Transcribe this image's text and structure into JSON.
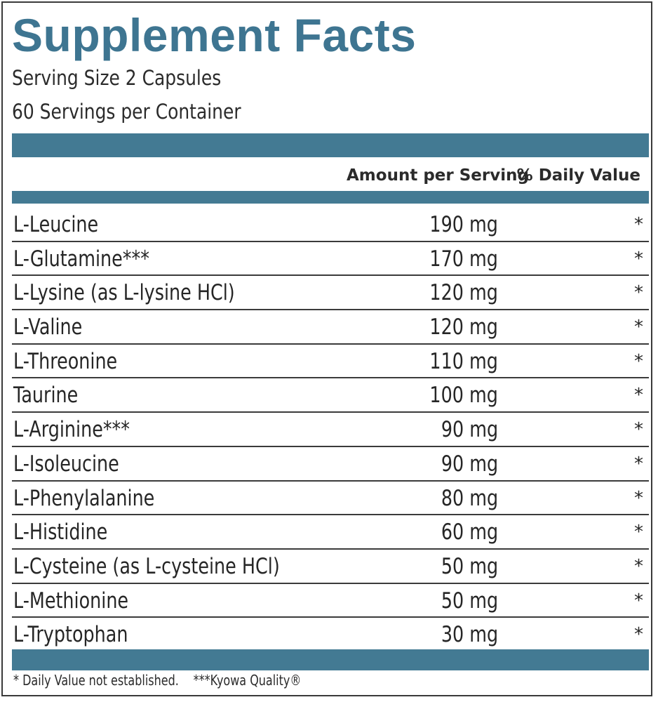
{
  "label": {
    "title": "Supplement Facts",
    "serving_size": "Serving Size 2 Capsules",
    "servings_per_container": "60 Servings per Container",
    "headers": {
      "amount": "Amount per Serving",
      "daily_value": "% Daily Value"
    },
    "accent_color": "#437a93",
    "ingredients": [
      {
        "name": "L-Leucine",
        "amount": "190 mg",
        "dv": "*"
      },
      {
        "name": "L-Glutamine***",
        "amount": "170 mg",
        "dv": "*"
      },
      {
        "name": "L-Lysine (as L-lysine HCl)",
        "amount": "120 mg",
        "dv": "*"
      },
      {
        "name": "L-Valine",
        "amount": "120 mg",
        "dv": "*"
      },
      {
        "name": "L-Threonine",
        "amount": "110 mg",
        "dv": "*"
      },
      {
        "name": "Taurine",
        "amount": "100 mg",
        "dv": "*"
      },
      {
        "name": "L-Arginine***",
        "amount": "90 mg",
        "dv": "*"
      },
      {
        "name": "L-Isoleucine",
        "amount": "90 mg",
        "dv": "*"
      },
      {
        "name": "L-Phenylalanine",
        "amount": "80 mg",
        "dv": "*"
      },
      {
        "name": "L-Histidine",
        "amount": "60 mg",
        "dv": "*"
      },
      {
        "name": "L-Cysteine (as L-cysteine HCl)",
        "amount": "50 mg",
        "dv": "*"
      },
      {
        "name": "L-Methionine",
        "amount": "50 mg",
        "dv": "*"
      },
      {
        "name": "L-Tryptophan",
        "amount": "30 mg",
        "dv": "*"
      }
    ],
    "footnotes": {
      "daily_value_note": "* Daily Value not established.",
      "kyowa_note": "***Kyowa Quality®"
    }
  }
}
